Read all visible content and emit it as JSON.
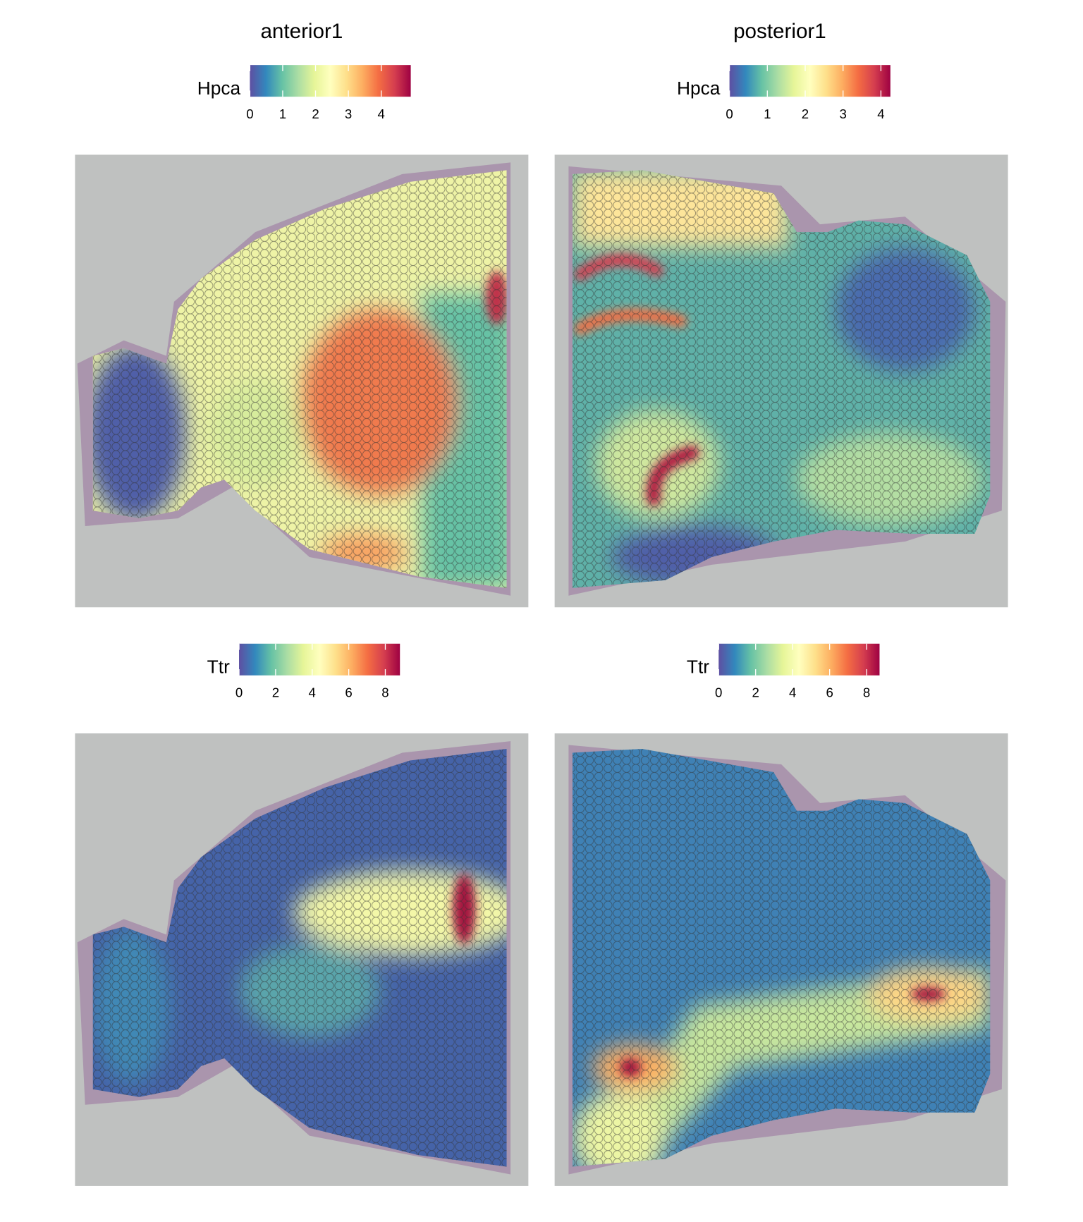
{
  "chart_data": [
    {
      "type": "spatial",
      "title": "anterior1",
      "legend_title": "Hpca",
      "clim": [
        0,
        4.9
      ],
      "cticks": [
        0,
        1,
        2,
        3,
        4
      ],
      "colors": [
        "#5e4fa2",
        "#3288bd",
        "#66c2a5",
        "#abdda4",
        "#e6f598",
        "#ffffbf",
        "#fee08b",
        "#fdae61",
        "#f46d43",
        "#d53e4f",
        "#9e0142"
      ]
    },
    {
      "type": "spatial",
      "title": "posterior1",
      "legend_title": "Hpca",
      "clim": [
        0,
        4.25
      ],
      "cticks": [
        0,
        1,
        2,
        3,
        4
      ],
      "colors": [
        "#5e4fa2",
        "#3288bd",
        "#66c2a5",
        "#abdda4",
        "#e6f598",
        "#ffffbf",
        "#fee08b",
        "#fdae61",
        "#f46d43",
        "#d53e4f",
        "#9e0142"
      ]
    },
    {
      "type": "spatial",
      "legend_title": "Ttr",
      "clim": [
        0,
        8.8
      ],
      "cticks": [
        0,
        2,
        4,
        6,
        8
      ],
      "colors": [
        "#5e4fa2",
        "#3288bd",
        "#66c2a5",
        "#abdda4",
        "#e6f598",
        "#ffffbf",
        "#fee08b",
        "#fdae61",
        "#f46d43",
        "#d53e4f",
        "#9e0142"
      ]
    },
    {
      "type": "spatial",
      "legend_title": "Ttr",
      "clim": [
        0,
        8.7
      ],
      "cticks": [
        0,
        2,
        4,
        6,
        8
      ],
      "colors": [
        "#5e4fa2",
        "#3288bd",
        "#66c2a5",
        "#abdda4",
        "#e6f598",
        "#ffffbf",
        "#fee08b",
        "#fdae61",
        "#f46d43",
        "#d53e4f",
        "#9e0142"
      ]
    }
  ]
}
